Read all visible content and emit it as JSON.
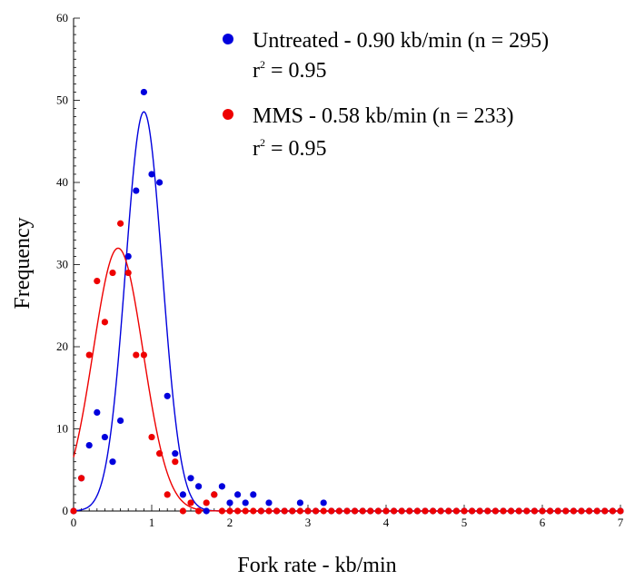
{
  "chart_data": {
    "type": "scatter",
    "xlabel": "Fork rate - kb/min",
    "ylabel": "Frequency",
    "xlim": [
      0,
      7
    ],
    "ylim": [
      0,
      60
    ],
    "xticks": [
      "0",
      "1",
      "2",
      "3",
      "4",
      "5",
      "6",
      "7"
    ],
    "yticks": [
      "0",
      "10",
      "20",
      "30",
      "40",
      "50",
      "60"
    ],
    "grid": false,
    "legend_position": "top-right",
    "series": [
      {
        "name": "Untreated - 0.90 kb/min (n = 295)",
        "r2_label": "r",
        "r2_sup": "2",
        "r2_value": " = 0.95",
        "color": "#0000dd",
        "fit": {
          "type": "gaussian",
          "amplitude": 48.6,
          "mean": 0.9,
          "sd": 0.235
        },
        "points": [
          [
            0.0,
            0
          ],
          [
            0.1,
            4
          ],
          [
            0.2,
            8
          ],
          [
            0.3,
            12
          ],
          [
            0.4,
            9
          ],
          [
            0.5,
            6
          ],
          [
            0.6,
            11
          ],
          [
            0.7,
            31
          ],
          [
            0.8,
            39
          ],
          [
            0.9,
            51
          ],
          [
            1.0,
            41
          ],
          [
            1.1,
            40
          ],
          [
            1.2,
            14
          ],
          [
            1.3,
            7
          ],
          [
            1.4,
            2
          ],
          [
            1.5,
            4
          ],
          [
            1.6,
            3
          ],
          [
            1.7,
            0
          ],
          [
            1.8,
            2
          ],
          [
            1.9,
            3
          ],
          [
            2.0,
            1
          ],
          [
            2.1,
            2
          ],
          [
            2.2,
            1
          ],
          [
            2.3,
            2
          ],
          [
            2.4,
            0
          ],
          [
            2.5,
            1
          ],
          [
            2.6,
            0
          ],
          [
            2.7,
            0
          ],
          [
            2.8,
            0
          ],
          [
            2.9,
            1
          ],
          [
            3.0,
            0
          ],
          [
            3.1,
            0
          ],
          [
            3.2,
            1
          ],
          [
            3.3,
            0
          ],
          [
            3.4,
            0
          ],
          [
            3.5,
            0
          ],
          [
            3.6,
            0
          ],
          [
            3.7,
            0
          ],
          [
            3.8,
            0
          ],
          [
            3.9,
            0
          ],
          [
            4.0,
            0
          ],
          [
            4.1,
            0
          ],
          [
            4.2,
            0
          ],
          [
            4.3,
            0
          ],
          [
            4.4,
            0
          ],
          [
            4.5,
            0
          ],
          [
            4.6,
            0
          ],
          [
            4.7,
            0
          ],
          [
            4.8,
            0
          ],
          [
            4.9,
            0
          ],
          [
            5.0,
            0
          ],
          [
            5.1,
            0
          ],
          [
            5.2,
            0
          ],
          [
            5.3,
            0
          ],
          [
            5.4,
            0
          ],
          [
            5.5,
            0
          ],
          [
            5.6,
            0
          ],
          [
            5.7,
            0
          ],
          [
            5.8,
            0
          ],
          [
            5.9,
            0
          ],
          [
            6.0,
            0
          ],
          [
            6.1,
            0
          ],
          [
            6.2,
            0
          ],
          [
            6.3,
            0
          ],
          [
            6.4,
            0
          ],
          [
            6.5,
            0
          ],
          [
            6.6,
            0
          ],
          [
            6.7,
            0
          ],
          [
            6.8,
            0
          ],
          [
            6.9,
            0
          ],
          [
            7.0,
            0
          ]
        ]
      },
      {
        "name": "MMS - 0.58 kb/min (n = 233)",
        "r2_label": "r",
        "r2_sup": "2",
        "r2_value": " = 0.95",
        "color": "#ee0000",
        "fit": {
          "type": "gaussian",
          "amplitude": 32,
          "mean": 0.57,
          "sd": 0.32
        },
        "points": [
          [
            0.0,
            0
          ],
          [
            0.1,
            4
          ],
          [
            0.2,
            19
          ],
          [
            0.3,
            28
          ],
          [
            0.4,
            23
          ],
          [
            0.5,
            29
          ],
          [
            0.6,
            35
          ],
          [
            0.7,
            29
          ],
          [
            0.8,
            19
          ],
          [
            0.9,
            19
          ],
          [
            1.0,
            9
          ],
          [
            1.1,
            7
          ],
          [
            1.2,
            2
          ],
          [
            1.3,
            6
          ],
          [
            1.4,
            0
          ],
          [
            1.5,
            1
          ],
          [
            1.6,
            0
          ],
          [
            1.7,
            1
          ],
          [
            1.8,
            2
          ],
          [
            1.9,
            0
          ],
          [
            2.0,
            0
          ],
          [
            2.1,
            0
          ],
          [
            2.2,
            0
          ],
          [
            2.3,
            0
          ],
          [
            2.4,
            0
          ],
          [
            2.5,
            0
          ],
          [
            2.6,
            0
          ],
          [
            2.7,
            0
          ],
          [
            2.8,
            0
          ],
          [
            2.9,
            0
          ],
          [
            3.0,
            0
          ],
          [
            3.1,
            0
          ],
          [
            3.2,
            0
          ],
          [
            3.3,
            0
          ],
          [
            3.4,
            0
          ],
          [
            3.5,
            0
          ],
          [
            3.6,
            0
          ],
          [
            3.7,
            0
          ],
          [
            3.8,
            0
          ],
          [
            3.9,
            0
          ],
          [
            4.0,
            0
          ],
          [
            4.1,
            0
          ],
          [
            4.2,
            0
          ],
          [
            4.3,
            0
          ],
          [
            4.4,
            0
          ],
          [
            4.5,
            0
          ],
          [
            4.6,
            0
          ],
          [
            4.7,
            0
          ],
          [
            4.8,
            0
          ],
          [
            4.9,
            0
          ],
          [
            5.0,
            0
          ],
          [
            5.1,
            0
          ],
          [
            5.2,
            0
          ],
          [
            5.3,
            0
          ],
          [
            5.4,
            0
          ],
          [
            5.5,
            0
          ],
          [
            5.6,
            0
          ],
          [
            5.7,
            0
          ],
          [
            5.8,
            0
          ],
          [
            5.9,
            0
          ],
          [
            6.0,
            0
          ],
          [
            6.1,
            0
          ],
          [
            6.2,
            0
          ],
          [
            6.3,
            0
          ],
          [
            6.4,
            0
          ],
          [
            6.5,
            0
          ],
          [
            6.6,
            0
          ],
          [
            6.7,
            0
          ],
          [
            6.8,
            0
          ],
          [
            6.9,
            0
          ],
          [
            7.0,
            0
          ]
        ]
      }
    ]
  }
}
